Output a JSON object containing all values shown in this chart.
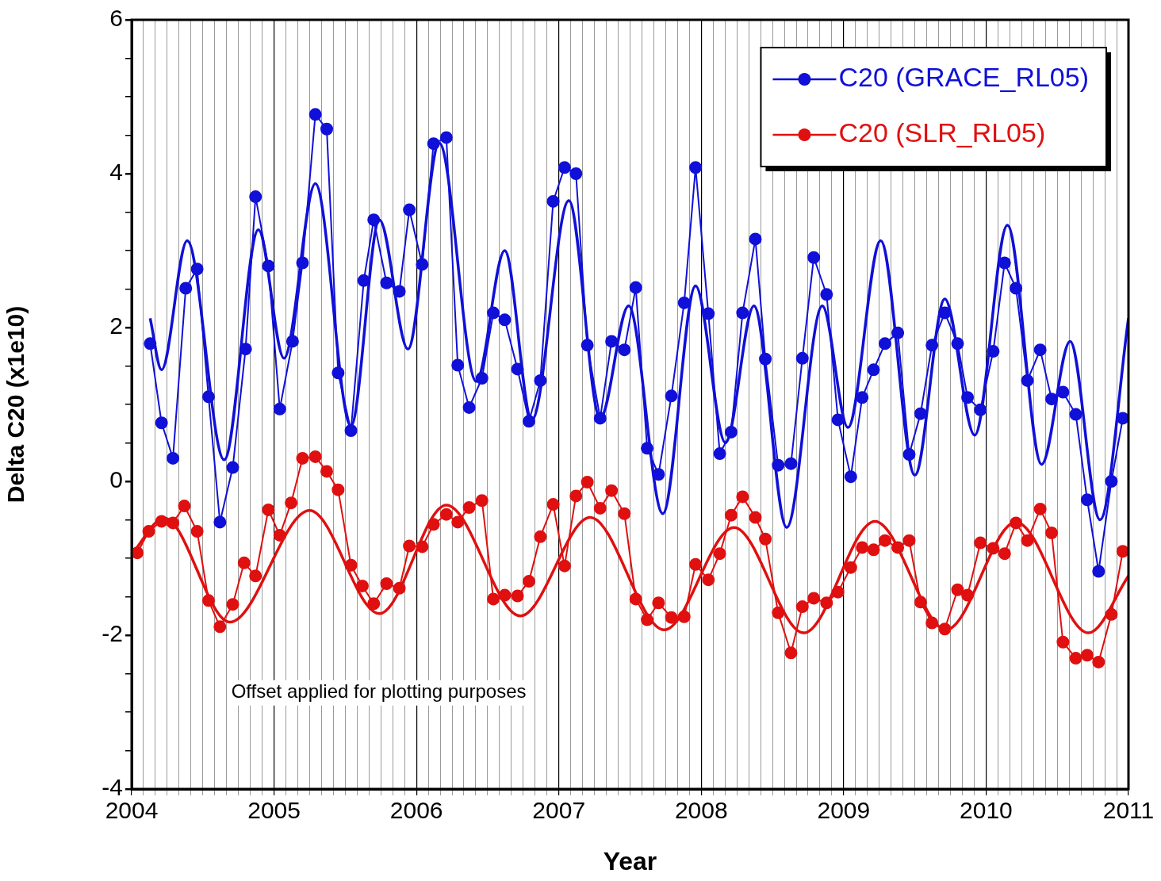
{
  "chart_data": {
    "type": "line",
    "xlabel": "Year",
    "ylabel": "Delta C20 (x1e10)",
    "xlim": [
      2004,
      2011
    ],
    "ylim": [
      -4,
      6
    ],
    "xticks": [
      2004,
      {
        "value": 2004.0833,
        "label": null
      },
      {
        "value": 2004.1667,
        "label": null
      },
      {
        "value": 2004.25,
        "label": null
      },
      {
        "value": 2004.3333,
        "label": null
      },
      {
        "value": 2004.4167,
        "label": null
      },
      {
        "value": 2004.5,
        "label": null
      },
      {
        "value": 2004.5833,
        "label": null
      },
      {
        "value": 2004.6667,
        "label": null
      },
      {
        "value": 2004.75,
        "label": null
      },
      {
        "value": 2004.8333,
        "label": null
      },
      {
        "value": 2004.9167,
        "label": null
      },
      2005,
      {
        "value": 2005.0833,
        "label": null
      },
      {
        "value": 2005.1667,
        "label": null
      },
      {
        "value": 2005.25,
        "label": null
      },
      {
        "value": 2005.3333,
        "label": null
      },
      {
        "value": 2005.4167,
        "label": null
      },
      {
        "value": 2005.5,
        "label": null
      },
      {
        "value": 2005.5833,
        "label": null
      },
      {
        "value": 2005.6667,
        "label": null
      },
      {
        "value": 2005.75,
        "label": null
      },
      {
        "value": 2005.8333,
        "label": null
      },
      {
        "value": 2005.9167,
        "label": null
      },
      2006,
      {
        "value": 2006.0833,
        "label": null
      },
      {
        "value": 2006.1667,
        "label": null
      },
      {
        "value": 2006.25,
        "label": null
      },
      {
        "value": 2006.3333,
        "label": null
      },
      {
        "value": 2006.4167,
        "label": null
      },
      {
        "value": 2006.5,
        "label": null
      },
      {
        "value": 2006.5833,
        "label": null
      },
      {
        "value": 2006.6667,
        "label": null
      },
      {
        "value": 2006.75,
        "label": null
      },
      {
        "value": 2006.8333,
        "label": null
      },
      {
        "value": 2006.9167,
        "label": null
      },
      2007,
      {
        "value": 2007.0833,
        "label": null
      },
      {
        "value": 2007.1667,
        "label": null
      },
      {
        "value": 2007.25,
        "label": null
      },
      {
        "value": 2007.3333,
        "label": null
      },
      {
        "value": 2007.4167,
        "label": null
      },
      {
        "value": 2007.5,
        "label": null
      },
      {
        "value": 2007.5833,
        "label": null
      },
      {
        "value": 2007.6667,
        "label": null
      },
      {
        "value": 2007.75,
        "label": null
      },
      {
        "value": 2007.8333,
        "label": null
      },
      {
        "value": 2007.9167,
        "label": null
      },
      2008,
      {
        "value": 2008.0833,
        "label": null
      },
      {
        "value": 2008.1667,
        "label": null
      },
      {
        "value": 2008.25,
        "label": null
      },
      {
        "value": 2008.3333,
        "label": null
      },
      {
        "value": 2008.4167,
        "label": null
      },
      {
        "value": 2008.5,
        "label": null
      },
      {
        "value": 2008.5833,
        "label": null
      },
      {
        "value": 2008.6667,
        "label": null
      },
      {
        "value": 2008.75,
        "label": null
      },
      {
        "value": 2008.8333,
        "label": null
      },
      {
        "value": 2008.9167,
        "label": null
      },
      2009,
      {
        "value": 2009.0833,
        "label": null
      },
      {
        "value": 2009.1667,
        "label": null
      },
      {
        "value": 2009.25,
        "label": null
      },
      {
        "value": 2009.3333,
        "label": null
      },
      {
        "value": 2009.4167,
        "label": null
      },
      {
        "value": 2009.5,
        "label": null
      },
      {
        "value": 2009.5833,
        "label": null
      },
      {
        "value": 2009.6667,
        "label": null
      },
      {
        "value": 2009.75,
        "label": null
      },
      {
        "value": 2009.8333,
        "label": null
      },
      {
        "value": 2009.9167,
        "label": null
      },
      2010,
      {
        "value": 2010.0833,
        "label": null
      },
      {
        "value": 2010.1667,
        "label": null
      },
      {
        "value": 2010.25,
        "label": null
      },
      {
        "value": 2010.3333,
        "label": null
      },
      {
        "value": 2010.4167,
        "label": null
      },
      {
        "value": 2010.5,
        "label": null
      },
      {
        "value": 2010.5833,
        "label": null
      },
      {
        "value": 2010.6667,
        "label": null
      },
      {
        "value": 2010.75,
        "label": null
      },
      {
        "value": 2010.8333,
        "label": null
      },
      {
        "value": 2010.9167,
        "label": null
      },
      2011
    ],
    "yticks": [
      -4,
      {
        "value": -3.5,
        "label": null
      },
      {
        "value": -3,
        "label": null
      },
      {
        "value": -2.5,
        "label": null
      },
      -2,
      {
        "value": -1.5,
        "label": null
      },
      {
        "value": -1,
        "label": null
      },
      {
        "value": -0.5,
        "label": null
      },
      0,
      {
        "value": 0.5,
        "label": null
      },
      {
        "value": 1,
        "label": null
      },
      {
        "value": 1.5,
        "label": null
      },
      2,
      {
        "value": 2.5,
        "label": null
      },
      {
        "value": 3,
        "label": null
      },
      {
        "value": 3.5,
        "label": null
      },
      4,
      {
        "value": 4.5,
        "label": null
      },
      {
        "value": 5,
        "label": null
      },
      {
        "value": 5.5,
        "label": null
      },
      6
    ],
    "grid": "x",
    "legend": "top right",
    "line_style": "solid",
    "annotations": [
      "Offset applied for plotting purposes"
    ],
    "series": [
      {
        "name": "C20 (GRACE_RL05)",
        "color": "#1010d8",
        "marker": "circle",
        "x": [
          2004.13,
          2004.21,
          2004.29,
          2004.38,
          2004.46,
          2004.54,
          2004.62,
          2004.71,
          2004.8,
          2004.87,
          2004.96,
          2005.04,
          2005.13,
          2005.2,
          2005.29,
          2005.37,
          2005.45,
          2005.54,
          2005.63,
          2005.7,
          2005.79,
          2005.88,
          2005.95,
          2006.04,
          2006.12,
          2006.21,
          2006.29,
          2006.37,
          2006.46,
          2006.54,
          2006.62,
          2006.71,
          2006.79,
          2006.87,
          2006.96,
          2007.04,
          2007.12,
          2007.2,
          2007.29,
          2007.37,
          2007.46,
          2007.54,
          2007.62,
          2007.7,
          2007.79,
          2007.88,
          2007.96,
          2008.05,
          2008.13,
          2008.21,
          2008.29,
          2008.38,
          2008.45,
          2008.54,
          2008.63,
          2008.71,
          2008.79,
          2008.88,
          2008.96,
          2009.05,
          2009.13,
          2009.21,
          2009.29,
          2009.38,
          2009.46,
          2009.54,
          2009.62,
          2009.71,
          2009.8,
          2009.87,
          2009.96,
          2010.05,
          2010.13,
          2010.21,
          2010.29,
          2010.38,
          2010.46,
          2010.54,
          2010.63,
          2010.71,
          2010.79,
          2010.88,
          2010.96
        ],
        "values": [
          1.79,
          0.76,
          0.3,
          2.51,
          2.76,
          1.1,
          -0.53,
          0.18,
          1.72,
          3.7,
          2.8,
          0.94,
          1.82,
          2.84,
          4.77,
          4.58,
          1.41,
          0.66,
          2.61,
          3.4,
          2.58,
          2.47,
          3.53,
          2.82,
          4.39,
          4.47,
          1.51,
          0.96,
          1.34,
          2.19,
          2.1,
          1.46,
          0.78,
          1.31,
          3.64,
          4.08,
          4.0,
          1.77,
          0.82,
          1.82,
          1.71,
          2.52,
          0.43,
          0.09,
          1.11,
          2.32,
          4.08,
          2.18,
          0.36,
          0.64,
          2.19,
          3.15,
          1.59,
          0.21,
          0.23,
          1.6,
          2.91,
          2.43,
          0.8,
          0.06,
          1.09,
          1.45,
          1.79,
          1.93,
          0.35,
          0.88,
          1.77,
          2.19,
          1.79,
          1.09,
          0.93,
          1.69,
          2.84,
          2.51,
          1.31,
          1.71,
          1.07,
          1.16,
          0.87,
          -0.24,
          -1.17,
          0.0,
          0.82
        ]
      },
      {
        "color": "#1010d8",
        "marker": "none",
        "x": [
          2004.13,
          2004.21,
          2004.39,
          2004.65,
          2004.89,
          2005.07,
          2005.29,
          2005.54,
          2005.74,
          2005.94,
          2006.16,
          2006.42,
          2006.62,
          2006.81,
          2007.07,
          2007.29,
          2007.49,
          2007.73,
          2007.96,
          2008.17,
          2008.37,
          2008.6,
          2008.85,
          2009.03,
          2009.26,
          2009.5,
          2009.71,
          2009.92,
          2010.15,
          2010.39,
          2010.59,
          2010.8,
          2011.0
        ],
        "values": [
          2.12,
          1.45,
          3.13,
          0.28,
          3.27,
          1.6,
          3.87,
          0.72,
          3.4,
          1.72,
          4.4,
          1.3,
          3.0,
          0.8,
          3.65,
          0.82,
          2.28,
          -0.42,
          2.54,
          0.5,
          2.28,
          -0.6,
          2.28,
          0.7,
          3.13,
          0.08,
          2.37,
          0.6,
          3.33,
          0.22,
          1.82,
          -0.5,
          2.12
        ]
      },
      {
        "name": "C20 (SLR_RL05)",
        "color": "#e01010",
        "marker": "circle",
        "x": [
          2004.04,
          2004.12,
          2004.21,
          2004.29,
          2004.37,
          2004.46,
          2004.54,
          2004.62,
          2004.71,
          2004.79,
          2004.87,
          2004.96,
          2005.04,
          2005.12,
          2005.2,
          2005.29,
          2005.37,
          2005.45,
          2005.54,
          2005.62,
          2005.7,
          2005.79,
          2005.88,
          2005.95,
          2006.04,
          2006.12,
          2006.21,
          2006.29,
          2006.37,
          2006.46,
          2006.54,
          2006.62,
          2006.71,
          2006.79,
          2006.87,
          2006.96,
          2007.04,
          2007.12,
          2007.2,
          2007.29,
          2007.37,
          2007.46,
          2007.54,
          2007.62,
          2007.7,
          2007.79,
          2007.88,
          2007.96,
          2008.05,
          2008.13,
          2008.21,
          2008.29,
          2008.38,
          2008.45,
          2008.54,
          2008.63,
          2008.71,
          2008.79,
          2008.88,
          2008.96,
          2009.05,
          2009.13,
          2009.21,
          2009.29,
          2009.38,
          2009.46,
          2009.54,
          2009.62,
          2009.71,
          2009.8,
          2009.87,
          2009.96,
          2010.05,
          2010.13,
          2010.21,
          2010.29,
          2010.38,
          2010.46,
          2010.54,
          2010.63,
          2010.71,
          2010.79,
          2010.88,
          2010.96
        ],
        "values": [
          -0.93,
          -0.65,
          -0.52,
          -0.54,
          -0.32,
          -0.65,
          -1.55,
          -1.89,
          -1.6,
          -1.06,
          -1.23,
          -0.37,
          -0.7,
          -0.28,
          0.3,
          0.32,
          0.13,
          -0.11,
          -1.09,
          -1.36,
          -1.59,
          -1.33,
          -1.39,
          -0.84,
          -0.85,
          -0.56,
          -0.43,
          -0.53,
          -0.34,
          -0.25,
          -1.53,
          -1.48,
          -1.49,
          -1.3,
          -0.72,
          -0.3,
          -1.1,
          -0.19,
          -0.01,
          -0.35,
          -0.12,
          -0.42,
          -1.53,
          -1.8,
          -1.58,
          -1.77,
          -1.76,
          -1.08,
          -1.28,
          -0.94,
          -0.44,
          -0.2,
          -0.47,
          -0.75,
          -1.71,
          -2.23,
          -1.63,
          -1.52,
          -1.58,
          -1.44,
          -1.12,
          -0.86,
          -0.89,
          -0.77,
          -0.86,
          -0.77,
          -1.57,
          -1.84,
          -1.92,
          -1.41,
          -1.48,
          -0.8,
          -0.87,
          -0.94,
          -0.54,
          -0.77,
          -0.36,
          -0.67,
          -2.09,
          -2.3,
          -2.26,
          -2.35,
          -1.73,
          -0.91
        ]
      },
      {
        "color": "#e01010",
        "marker": "none",
        "x": [
          2004.0,
          2004.23,
          2004.69,
          2005.25,
          2005.74,
          2006.21,
          2006.73,
          2007.22,
          2007.74,
          2008.23,
          2008.72,
          2009.22,
          2009.72,
          2010.21,
          2010.72,
          2011.0
        ],
        "values": [
          -0.95,
          -0.48,
          -1.83,
          -0.38,
          -1.72,
          -0.31,
          -1.75,
          -0.47,
          -1.93,
          -0.6,
          -1.97,
          -0.52,
          -1.93,
          -0.53,
          -1.97,
          -1.23
        ]
      }
    ]
  }
}
